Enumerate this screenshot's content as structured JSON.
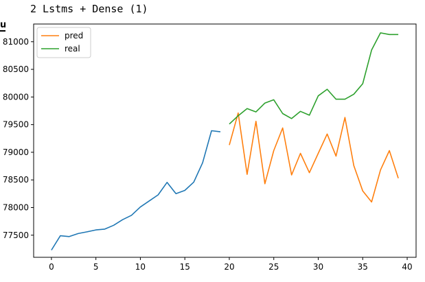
{
  "cell": {
    "title": "2 Lstms + Dense (1)",
    "cut_label": "ul"
  },
  "chart_data": {
    "type": "line",
    "title": "",
    "xlabel": "",
    "ylabel": "",
    "xlim": [
      -2,
      41
    ],
    "ylim": [
      77100,
      81320
    ],
    "xticks": [
      0,
      5,
      10,
      15,
      20,
      25,
      30,
      35,
      40
    ],
    "yticks": [
      77500,
      78000,
      78500,
      79000,
      79500,
      80000,
      80500,
      81000
    ],
    "legend_position": "top-left",
    "series": [
      {
        "color": "#1f77b4",
        "x": [
          0,
          1,
          2,
          3,
          4,
          5,
          6,
          7,
          8,
          9,
          10,
          11,
          12,
          13,
          14,
          15,
          16,
          17,
          18,
          19
        ],
        "y": [
          77230,
          77490,
          77475,
          77530,
          77560,
          77595,
          77610,
          77680,
          77780,
          77860,
          78010,
          78120,
          78230,
          78455,
          78250,
          78310,
          78460,
          78810,
          79390,
          79370
        ]
      },
      {
        "name": "pred",
        "color": "#ff7f0e",
        "x": [
          20,
          21,
          22,
          23,
          24,
          25,
          26,
          27,
          28,
          29,
          30,
          31,
          32,
          33,
          34,
          35,
          36,
          37,
          38,
          39
        ],
        "y": [
          79130,
          79710,
          78600,
          79560,
          78430,
          79030,
          79440,
          78590,
          78980,
          78630,
          78980,
          79330,
          78930,
          79630,
          78760,
          78300,
          78100,
          78680,
          79030,
          78530
        ]
      },
      {
        "name": "real",
        "color": "#2ca02c",
        "x": [
          20,
          21,
          22,
          23,
          24,
          25,
          26,
          27,
          28,
          29,
          30,
          31,
          32,
          33,
          34,
          35,
          36,
          37,
          38,
          39
        ],
        "y": [
          79510,
          79660,
          79790,
          79730,
          79890,
          79950,
          79700,
          79610,
          79740,
          79670,
          80020,
          80140,
          79960,
          79960,
          80050,
          80240,
          80850,
          81160,
          81130,
          81130
        ]
      }
    ]
  }
}
